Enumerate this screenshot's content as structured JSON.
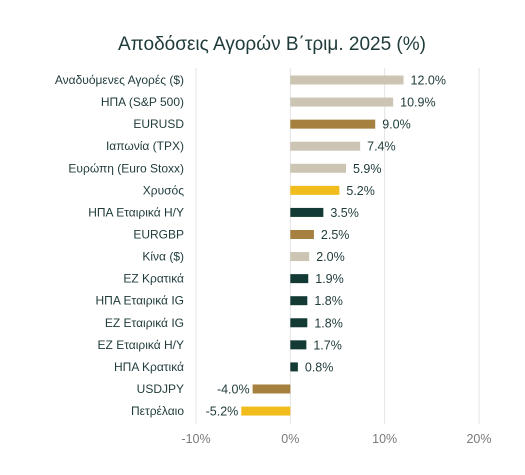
{
  "chart_data": {
    "type": "bar",
    "orientation": "horizontal",
    "title": "Αποδόσεις Αγορών Β΄τριμ. 2025 (%)",
    "categories": [
      "Αναδυόμενες Αγορές ($)",
      "ΗΠΑ (S&P 500)",
      "EURUSD",
      "Ιαπωνία (TPX)",
      "Ευρώπη (Euro Stoxx)",
      "Χρυσός",
      "ΗΠΑ Εταιρικά Η/Υ",
      "EURGBP",
      "Κίνα ($)",
      "ΕΖ Κρατικά",
      "ΗΠΑ Εταιρικά IG",
      "ΕΖ Εταιρικά IG",
      "ΕΖ Εταιρικά Η/Υ",
      "ΗΠΑ Κρατικά",
      "USDJPY",
      "Πετρέλαιο"
    ],
    "values": [
      12.0,
      10.9,
      9.0,
      7.4,
      5.9,
      5.2,
      3.5,
      2.5,
      2.0,
      1.9,
      1.8,
      1.8,
      1.7,
      0.8,
      -4.0,
      -5.2
    ],
    "value_labels": [
      "12.0%",
      "10.9%",
      "9.0%",
      "7.4%",
      "5.9%",
      "5.2%",
      "3.5%",
      "2.5%",
      "2.0%",
      "1.9%",
      "1.8%",
      "1.8%",
      "1.7%",
      "0.8%",
      "-4.0%",
      "-5.2%"
    ],
    "bar_colors": [
      "#cdc5b4",
      "#cdc5b4",
      "#a5803f",
      "#cdc5b4",
      "#cdc5b4",
      "#f0bd1c",
      "#133a35",
      "#a5803f",
      "#cdc5b4",
      "#133a35",
      "#133a35",
      "#133a35",
      "#133a35",
      "#133a35",
      "#a5803f",
      "#f0bd1c"
    ],
    "xlim": [
      -10,
      20
    ],
    "xticks": [
      -10,
      0,
      10,
      20
    ],
    "xtick_labels": [
      "-10%",
      "0%",
      "10%",
      "20%"
    ],
    "grid": "vertical",
    "legend": "none"
  }
}
